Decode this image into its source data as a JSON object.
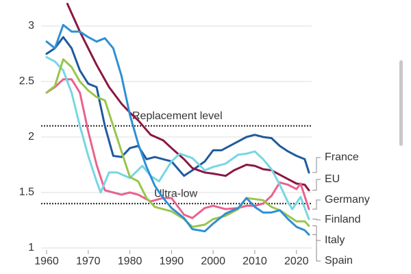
{
  "chart_data": {
    "type": "line",
    "xlim": [
      1960,
      2023
    ],
    "xticks": [
      1960,
      1970,
      1980,
      1990,
      2000,
      2010,
      2020
    ],
    "ylim": [
      1,
      3.2
    ],
    "yticks": [
      1,
      1.5,
      2,
      2.5,
      3
    ],
    "grid": true,
    "reference_lines": [
      {
        "value": 2.1,
        "label": "Replacement level"
      },
      {
        "value": 1.4,
        "label": "Ultra-low"
      }
    ],
    "series": [
      {
        "name": "France",
        "color": "#1f5a9e",
        "x": [
          1960,
          1962,
          1964,
          1966,
          1968,
          1970,
          1972,
          1974,
          1976,
          1978,
          1980,
          1982,
          1984,
          1986,
          1988,
          1990,
          1993,
          1995,
          1998,
          2000,
          2002,
          2005,
          2008,
          2010,
          2012,
          2014,
          2016,
          2018,
          2020,
          2022,
          2023
        ],
        "values": [
          2.75,
          2.8,
          2.9,
          2.8,
          2.6,
          2.48,
          2.45,
          2.1,
          1.83,
          1.82,
          1.9,
          1.92,
          1.8,
          1.82,
          1.8,
          1.78,
          1.65,
          1.7,
          1.78,
          1.88,
          1.88,
          1.94,
          2.0,
          2.02,
          2.0,
          1.99,
          1.92,
          1.87,
          1.83,
          1.8,
          1.68
        ]
      },
      {
        "name": "EU",
        "color": "#8a1743",
        "x": [
          1965,
          1968,
          1970,
          1972,
          1975,
          1978,
          1980,
          1982,
          1985,
          1988,
          1990,
          1993,
          1995,
          1998,
          2000,
          2003,
          2005,
          2008,
          2010,
          2012,
          2014,
          2016,
          2018,
          2020,
          2022,
          2023
        ],
        "values": [
          3.2,
          2.95,
          2.8,
          2.65,
          2.45,
          2.3,
          2.22,
          2.15,
          2.02,
          1.97,
          1.9,
          1.8,
          1.72,
          1.68,
          1.67,
          1.65,
          1.7,
          1.75,
          1.74,
          1.71,
          1.7,
          1.66,
          1.62,
          1.58,
          1.57,
          1.52
        ]
      },
      {
        "name": "Germany",
        "color": "#e8628e",
        "x": [
          1960,
          1962,
          1964,
          1966,
          1968,
          1970,
          1972,
          1974,
          1976,
          1978,
          1980,
          1982,
          1985,
          1988,
          1990,
          1993,
          1995,
          1998,
          2000,
          2003,
          2006,
          2008,
          2010,
          2012,
          2014,
          2016,
          2018,
          2020,
          2021,
          2023
        ],
        "values": [
          2.4,
          2.45,
          2.52,
          2.52,
          2.4,
          2.05,
          1.75,
          1.52,
          1.5,
          1.48,
          1.5,
          1.48,
          1.42,
          1.45,
          1.45,
          1.3,
          1.27,
          1.36,
          1.38,
          1.35,
          1.36,
          1.38,
          1.38,
          1.4,
          1.47,
          1.59,
          1.57,
          1.53,
          1.58,
          1.35
        ]
      },
      {
        "name": "Finland",
        "color": "#76d6e3",
        "x": [
          1960,
          1962,
          1964,
          1966,
          1968,
          1970,
          1972,
          1973,
          1975,
          1977,
          1980,
          1983,
          1985,
          1987,
          1990,
          1992,
          1995,
          1998,
          2000,
          2003,
          2006,
          2008,
          2010,
          2012,
          2014,
          2016,
          2018,
          2019,
          2021,
          2023
        ],
        "values": [
          2.72,
          2.68,
          2.6,
          2.4,
          2.1,
          1.83,
          1.6,
          1.5,
          1.68,
          1.68,
          1.63,
          1.74,
          1.65,
          1.6,
          1.78,
          1.85,
          1.81,
          1.7,
          1.73,
          1.76,
          1.84,
          1.85,
          1.87,
          1.8,
          1.71,
          1.57,
          1.41,
          1.35,
          1.46,
          1.26
        ]
      },
      {
        "name": "Italy",
        "color": "#98c54c",
        "x": [
          1960,
          1962,
          1964,
          1966,
          1968,
          1970,
          1972,
          1974,
          1976,
          1978,
          1980,
          1982,
          1984,
          1986,
          1988,
          1990,
          1993,
          1995,
          1998,
          2000,
          2003,
          2006,
          2008,
          2010,
          2012,
          2014,
          2016,
          2018,
          2020,
          2022,
          2023
        ],
        "values": [
          2.4,
          2.46,
          2.7,
          2.63,
          2.5,
          2.42,
          2.36,
          2.33,
          2.1,
          1.87,
          1.64,
          1.6,
          1.45,
          1.37,
          1.35,
          1.33,
          1.26,
          1.19,
          1.21,
          1.26,
          1.29,
          1.35,
          1.45,
          1.44,
          1.43,
          1.37,
          1.34,
          1.29,
          1.24,
          1.24,
          1.2
        ]
      },
      {
        "name": "Spain",
        "color": "#2e8fd4",
        "x": [
          1960,
          1962,
          1964,
          1966,
          1968,
          1970,
          1972,
          1974,
          1976,
          1978,
          1980,
          1982,
          1984,
          1986,
          1988,
          1990,
          1993,
          1995,
          1998,
          2000,
          2003,
          2006,
          2008,
          2010,
          2012,
          2014,
          2016,
          2018,
          2020,
          2022,
          2023
        ],
        "values": [
          2.86,
          2.8,
          3.01,
          2.95,
          2.95,
          2.9,
          2.86,
          2.89,
          2.8,
          2.55,
          2.2,
          1.94,
          1.73,
          1.56,
          1.45,
          1.36,
          1.27,
          1.17,
          1.15,
          1.22,
          1.31,
          1.36,
          1.45,
          1.37,
          1.32,
          1.32,
          1.34,
          1.26,
          1.19,
          1.16,
          1.12
        ]
      }
    ]
  }
}
